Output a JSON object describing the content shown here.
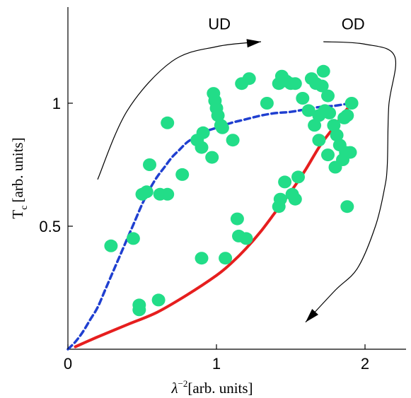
{
  "chart_data": {
    "type": "scatter",
    "title": "",
    "xlabel": {
      "symbol": "λ",
      "sup": "−2",
      "unit": "[arb. units]"
    },
    "ylabel": {
      "symbol": "T",
      "sub": "c",
      "unit": "[arb. units]"
    },
    "xlim": [
      0,
      2.25
    ],
    "ylim": [
      0,
      1.38
    ],
    "x_ticks": [
      {
        "value": 0,
        "label": "0"
      },
      {
        "value": 1,
        "label": "1"
      },
      {
        "value": 2,
        "label": "2"
      }
    ],
    "y_ticks": [
      {
        "value": 0.5,
        "label": "0.5"
      },
      {
        "value": 1,
        "label": "1"
      }
    ],
    "grid": false,
    "annotations": [
      {
        "text": "UD",
        "x": 1.02,
        "y": 1.3
      },
      {
        "text": "OD",
        "x": 1.92,
        "y": 1.3
      }
    ],
    "scatter_points": [
      [
        0.29,
        0.42
      ],
      [
        0.44,
        0.45
      ],
      [
        0.48,
        0.18
      ],
      [
        0.48,
        0.16
      ],
      [
        0.61,
        0.2
      ],
      [
        0.5,
        0.63
      ],
      [
        0.53,
        0.64
      ],
      [
        0.55,
        0.75
      ],
      [
        0.62,
        0.63
      ],
      [
        0.67,
        0.63
      ],
      [
        0.67,
        0.92
      ],
      [
        0.77,
        0.71
      ],
      [
        0.87,
        0.85
      ],
      [
        0.9,
        0.82
      ],
      [
        0.91,
        0.88
      ],
      [
        0.97,
        0.78
      ],
      [
        0.9,
        0.37
      ],
      [
        1.06,
        0.37
      ],
      [
        0.99,
        1.01
      ],
      [
        0.98,
        1.04
      ],
      [
        1.0,
        0.98
      ],
      [
        1.01,
        0.95
      ],
      [
        1.03,
        0.91
      ],
      [
        1.04,
        0.9
      ],
      [
        1.11,
        0.85
      ],
      [
        1.14,
        0.53
      ],
      [
        1.15,
        0.46
      ],
      [
        1.2,
        0.45
      ],
      [
        1.17,
        1.08
      ],
      [
        1.22,
        1.1
      ],
      [
        1.34,
        1.0
      ],
      [
        1.42,
        1.08
      ],
      [
        1.44,
        1.11
      ],
      [
        1.47,
        1.09
      ],
      [
        1.5,
        1.08
      ],
      [
        1.53,
        1.08
      ],
      [
        1.58,
        1.02
      ],
      [
        1.64,
        1.1
      ],
      [
        1.67,
        1.08
      ],
      [
        1.72,
        1.13
      ],
      [
        1.71,
        1.07
      ],
      [
        1.62,
        0.97
      ],
      [
        1.73,
        0.97
      ],
      [
        1.75,
        1.03
      ],
      [
        1.76,
        0.96
      ],
      [
        1.66,
        0.91
      ],
      [
        1.69,
        0.95
      ],
      [
        1.75,
        0.79
      ],
      [
        1.79,
        0.91
      ],
      [
        1.81,
        0.87
      ],
      [
        1.83,
        0.83
      ],
      [
        1.86,
        0.94
      ],
      [
        1.88,
        0.95
      ],
      [
        1.91,
        1.0
      ],
      [
        1.87,
        0.8
      ],
      [
        1.9,
        0.8
      ],
      [
        1.85,
        0.77
      ],
      [
        1.8,
        0.74
      ],
      [
        1.88,
        0.58
      ],
      [
        1.46,
        0.68
      ],
      [
        1.55,
        0.7
      ],
      [
        1.43,
        0.61
      ],
      [
        1.42,
        0.58
      ],
      [
        1.51,
        0.63
      ],
      [
        1.53,
        0.61
      ],
      [
        1.69,
        0.85
      ]
    ],
    "curves": [
      {
        "style": "blue-dashed",
        "color": "#1f3fd0",
        "points": [
          [
            0.0,
            0.0
          ],
          [
            0.05,
            0.03
          ],
          [
            0.1,
            0.07
          ],
          [
            0.15,
            0.12
          ],
          [
            0.2,
            0.17
          ],
          [
            0.25,
            0.24
          ],
          [
            0.3,
            0.31
          ],
          [
            0.35,
            0.38
          ],
          [
            0.4,
            0.45
          ],
          [
            0.45,
            0.52
          ],
          [
            0.5,
            0.59
          ],
          [
            0.55,
            0.65
          ],
          [
            0.6,
            0.7
          ],
          [
            0.65,
            0.74
          ],
          [
            0.7,
            0.78
          ],
          [
            0.75,
            0.81
          ],
          [
            0.8,
            0.84
          ],
          [
            0.85,
            0.86
          ],
          [
            0.9,
            0.88
          ],
          [
            1.0,
            0.9
          ],
          [
            1.1,
            0.92
          ],
          [
            1.2,
            0.935
          ],
          [
            1.3,
            0.95
          ],
          [
            1.4,
            0.96
          ],
          [
            1.5,
            0.965
          ],
          [
            1.6,
            0.975
          ],
          [
            1.7,
            0.985
          ],
          [
            1.8,
            0.99
          ],
          [
            1.9,
            1.0
          ]
        ]
      },
      {
        "style": "red-solid",
        "color": "#e61e1e",
        "points": [
          [
            0.05,
            0.01
          ],
          [
            0.2,
            0.05
          ],
          [
            0.4,
            0.1
          ],
          [
            0.6,
            0.15
          ],
          [
            0.8,
            0.22
          ],
          [
            1.0,
            0.3
          ],
          [
            1.1,
            0.35
          ],
          [
            1.2,
            0.41
          ],
          [
            1.3,
            0.48
          ],
          [
            1.4,
            0.56
          ],
          [
            1.5,
            0.64
          ],
          [
            1.6,
            0.73
          ],
          [
            1.7,
            0.83
          ],
          [
            1.8,
            0.91
          ],
          [
            1.87,
            0.97
          ],
          [
            1.9,
            0.99
          ]
        ]
      }
    ],
    "arrows": [
      {
        "name": "ud-arrow",
        "points": [
          [
            0.2,
            0.69
          ],
          [
            0.4,
            0.97
          ],
          [
            0.7,
            1.17
          ],
          [
            1.0,
            1.23
          ],
          [
            1.3,
            1.25
          ]
        ]
      },
      {
        "name": "od-arrow",
        "points": [
          [
            1.72,
            1.25
          ],
          [
            2.0,
            1.24
          ],
          [
            2.2,
            1.19
          ],
          [
            2.16,
            0.99
          ],
          [
            2.15,
            0.75
          ],
          [
            2.13,
            0.65
          ],
          [
            2.07,
            0.5
          ],
          [
            1.95,
            0.33
          ],
          [
            1.8,
            0.24
          ],
          [
            1.6,
            0.11
          ]
        ]
      }
    ],
    "colors": {
      "points": "#22dd88",
      "axis": "#000000",
      "arrow": "#000000"
    }
  }
}
